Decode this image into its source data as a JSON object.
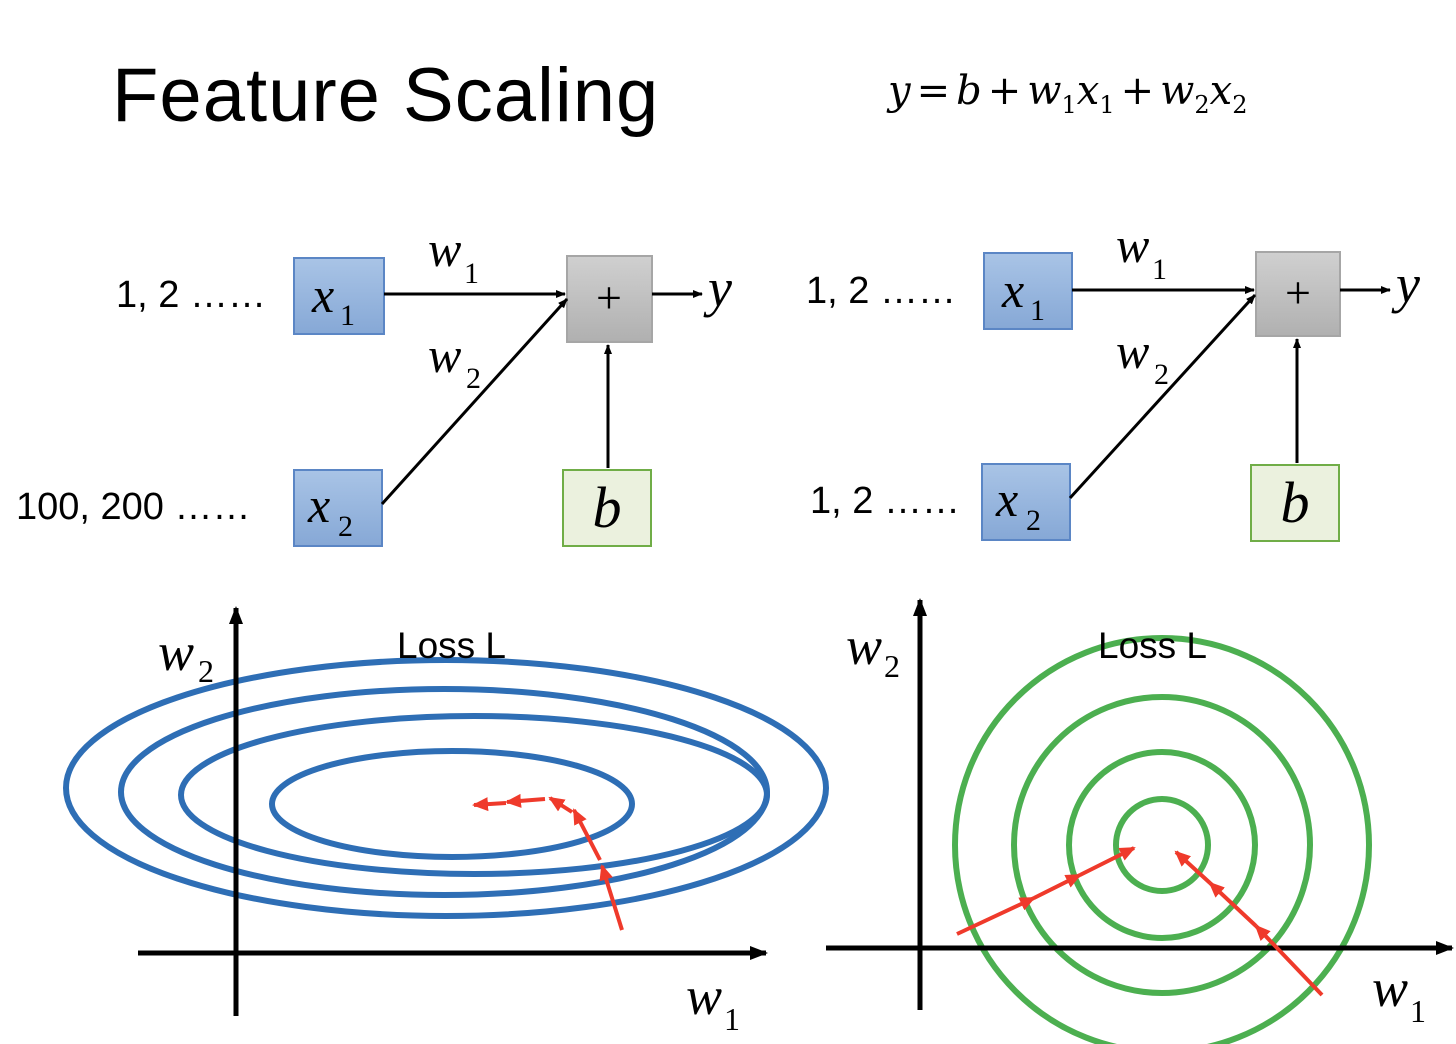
{
  "title": "Feature Scaling",
  "formula": {
    "y": "y",
    "eq": "=",
    "b": "b",
    "plus1": "+",
    "w1": "w",
    "w1_sub": "1",
    "x1": "x",
    "x1_sub": "1",
    "plus2": "+",
    "w2": "w",
    "w2_sub": "2",
    "x2": "x",
    "x2_sub": "2"
  },
  "left_network": {
    "x1_values": "1, 2 ……",
    "x2_values": "100, 200 ……",
    "x1_node": {
      "main": "x",
      "sub": "1"
    },
    "x2_node": {
      "main": "x",
      "sub": "2"
    },
    "w1_label": {
      "main": "w",
      "sub": "1"
    },
    "w2_label": {
      "main": "w",
      "sub": "2"
    },
    "sum_node": "+",
    "output": "y",
    "bias_node": "b"
  },
  "right_network": {
    "x1_values": "1, 2 ……",
    "x2_values": "1, 2 ……",
    "x1_node": {
      "main": "x",
      "sub": "1"
    },
    "x2_node": {
      "main": "x",
      "sub": "2"
    },
    "w1_label": {
      "main": "w",
      "sub": "1"
    },
    "w2_label": {
      "main": "w",
      "sub": "2"
    },
    "sum_node": "+",
    "output": "y",
    "bias_node": "b"
  },
  "left_plot": {
    "title": "Loss L",
    "x_axis": {
      "main": "w",
      "sub": "1"
    },
    "y_axis": {
      "main": "w",
      "sub": "2"
    }
  },
  "right_plot": {
    "title": "Loss L",
    "x_axis": {
      "main": "w",
      "sub": "1"
    },
    "y_axis": {
      "main": "w",
      "sub": "2"
    }
  },
  "colors": {
    "input_fill": "#95b3d7",
    "input_stroke": "#5b86c5",
    "bias_fill": "#ebf1de",
    "bias_stroke": "#70ad47",
    "sum_fill": "#bfbfbf",
    "left_contour": "#2e6eb5",
    "right_contour": "#4caf50",
    "gradient_arrow": "#ef3a2b"
  }
}
